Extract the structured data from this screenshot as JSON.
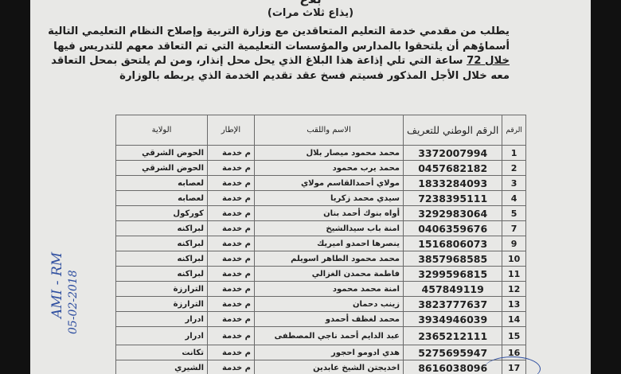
{
  "document": {
    "cut_title": "بلاغ",
    "subtitle": "(يذاع ثلاث مرات)",
    "paragraph_lines": [
      "يطلب من مقدمي خدمة التعليم المتعاقدين مع وزارة التربية وإصلاح النظام التعليمي التالية",
      "أسماؤهم أن يلتحقوا بالمدارس والمؤسسات التعليمية التي تم التعاقد معهم للتدريس فيها",
      "ساعة التي تلي إذاعة هذا البلاغ الذي يحل محل إنذار، ومن لم يلتحق بمحل التعاقد",
      "معه خلال الأجل المذكور فسيتم فسخ عقد تقديم الخدمة الذي يربطه بالوزارة"
    ],
    "underlined_phrase": "خلال 72"
  },
  "table": {
    "headers": {
      "num": "الرقم",
      "nni": "الرقم الوطني للتعريف",
      "name": "الاسم واللقب",
      "itar": "الإطار",
      "wilaya": "الولاية"
    },
    "rows": [
      {
        "num": "1",
        "nni": "3372007994",
        "name": "محمد محمود ميصار بلال",
        "itar": "م خدمة",
        "wilaya": "الحوض الشرقي"
      },
      {
        "num": "2",
        "nni": "0457682182",
        "name": "محمد يرب محمود",
        "itar": "م خدمة",
        "wilaya": "الحوض الشرقي"
      },
      {
        "num": "3",
        "nni": "1833284093",
        "name": "مولاي أحمدالقاسم مولاي",
        "itar": "م خدمة",
        "wilaya": "لعصابه"
      },
      {
        "num": "4",
        "nni": "7238395111",
        "name": "سيدي محمد زكريا",
        "itar": "م خدمة",
        "wilaya": "لعصابه"
      },
      {
        "num": "5",
        "nni": "3292983064",
        "name": "أواه بنوك أحمد بنان",
        "itar": "م خدمة",
        "wilaya": "كوركول"
      },
      {
        "num": "7",
        "nni": "0406359676",
        "name": "امنة باب سيدالشيخ",
        "itar": "م خدمة",
        "wilaya": "لبراكنه"
      },
      {
        "num": "9",
        "nni": "1516806073",
        "name": "ينصرها احمدو اميريك",
        "itar": "م خدمة",
        "wilaya": "لبراكنه"
      },
      {
        "num": "10",
        "nni": "3857968585",
        "name": "محمد محمود الطاهر اسويلم",
        "itar": "م خدمة",
        "wilaya": "لبراكنه"
      },
      {
        "num": "11",
        "nni": "3299596815",
        "name": "فاطمة محمدن الغزالي",
        "itar": "م خدمة",
        "wilaya": "لبراكنه"
      },
      {
        "num": "12",
        "nni": "457849119",
        "name": "امنة محمد محمود",
        "itar": "م خدمة",
        "wilaya": "الترارزة"
      },
      {
        "num": "13",
        "nni": "3823777637",
        "name": "زينب دحمان",
        "itar": "م خدمة",
        "wilaya": "الترارزة"
      },
      {
        "num": "14",
        "nni": "3934946039",
        "name": "محمد لغظف أحمدو",
        "itar": "م خدمة",
        "wilaya": "ادرار"
      },
      {
        "num": "15",
        "nni": "2365212111",
        "name": "عبد الدايم أحمد ناجي المصطفى",
        "itar": "م خدمة",
        "wilaya": "ادرار"
      },
      {
        "num": "16",
        "nni": "5275695947",
        "name": "هدي ادومو احجور",
        "itar": "م خدمة",
        "wilaya": "تكانت"
      },
      {
        "num": "17",
        "nni": "8616038096",
        "name": "اخديجتن الشيخ عابدين",
        "itar": "م خدمة",
        "wilaya": "الشيري"
      }
    ]
  },
  "handwritten_note": {
    "line1": "AMI - RM",
    "line2": "05-02-2018"
  },
  "colors": {
    "paper": "#e8e8e6",
    "ink": "#1d1d1d",
    "pen": "#2f4fa0"
  }
}
